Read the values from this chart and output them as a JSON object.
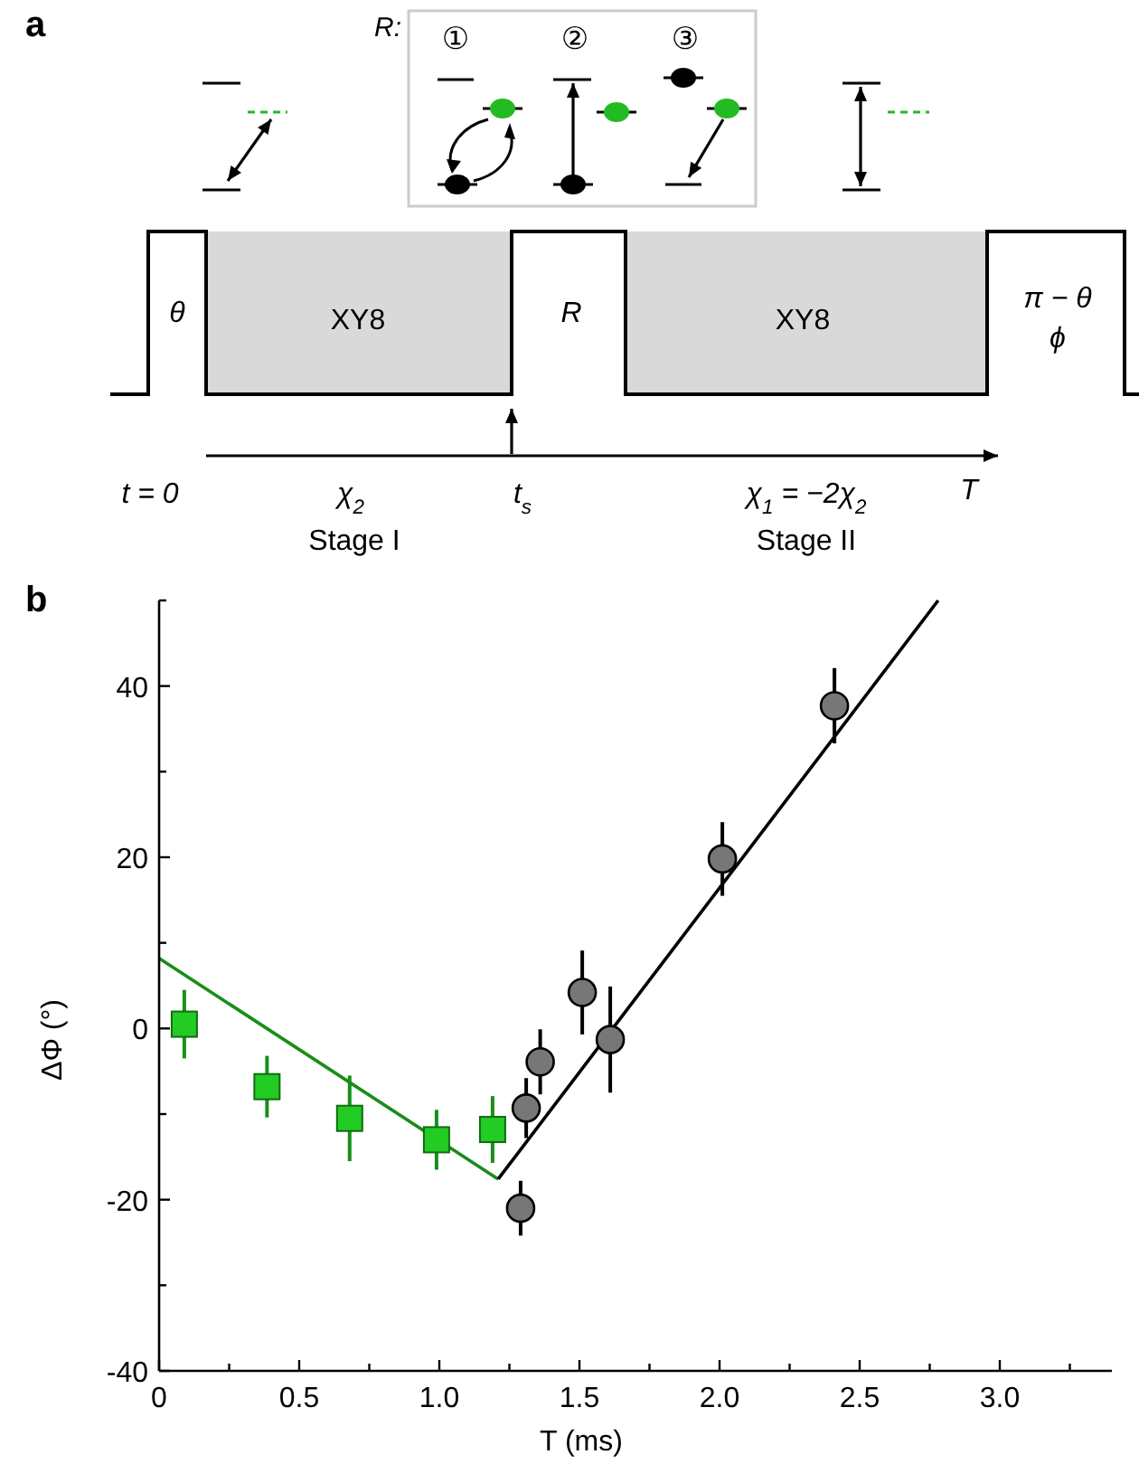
{
  "chart_data": [
    {
      "type": "other",
      "annotations": [
        "a",
        "R:",
        "①",
        "②",
        "③",
        "θ",
        "XY8",
        "R",
        "XY8",
        "π − θ",
        "ϕ",
        "t = 0",
        "χ$_{2}$",
        "t$_{s}$",
        "χ$_{1}$ = −2χ$_{2}$",
        "T",
        "Stage I",
        "Stage II"
      ]
    },
    {
      "type": "scatter",
      "xlabel": "T (ms)",
      "ylabel": "ΔΦ (°)",
      "annotations": [
        "b"
      ],
      "xlim": [
        0,
        3.4
      ],
      "ylim": [
        -40,
        50
      ],
      "xticks": [
        0,
        {
          "value": 0.25,
          "label": null
        },
        0.5,
        {
          "value": 0.75,
          "label": null
        },
        {
          "value": 1,
          "label": "1.0"
        },
        {
          "value": 1.25,
          "label": null
        },
        1.5,
        {
          "value": 1.75,
          "label": null
        },
        {
          "value": 2,
          "label": "2.0"
        },
        {
          "value": 2.25,
          "label": null
        },
        2.5,
        {
          "value": 2.75,
          "label": null
        },
        {
          "value": 3,
          "label": "3.0"
        },
        {
          "value": 3.25,
          "label": null
        }
      ],
      "yticks": [
        -40,
        {
          "value": -30,
          "label": null
        },
        -20,
        {
          "value": -10,
          "label": null
        },
        0,
        {
          "value": 10,
          "label": null
        },
        20,
        {
          "value": 30,
          "label": null
        },
        40,
        {
          "value": 50,
          "label": null
        }
      ],
      "series": [
        {
          "type": "line",
          "color": "#1a8c1a",
          "x": [
            0,
            1.21
          ],
          "values": [
            8.2,
            -17.6
          ]
        },
        {
          "type": "line",
          "color": "#000000",
          "x": [
            1.21,
            2.78
          ],
          "values": [
            -17.6,
            50
          ]
        },
        {
          "type": "scatter",
          "marker": "square",
          "color": "#22cc22",
          "x": [
            0.09,
            0.385,
            0.68,
            0.99,
            1.19
          ],
          "values": [
            0.5,
            -6.8,
            -10.5,
            -13,
            -11.8
          ],
          "errors": [
            4,
            3.6,
            5,
            3.5,
            3.9
          ]
        },
        {
          "type": "scatter",
          "marker": "circle",
          "color": "#777777",
          "x": [
            1.29,
            1.31,
            1.36,
            1.51,
            1.61,
            2.01,
            2.41
          ],
          "values": [
            -21,
            -9.3,
            -3.9,
            4.2,
            -1.3,
            19.8,
            37.7
          ],
          "errors": [
            3.2,
            3.5,
            3.8,
            4.9,
            6.2,
            4.3,
            4.4
          ]
        }
      ]
    }
  ]
}
